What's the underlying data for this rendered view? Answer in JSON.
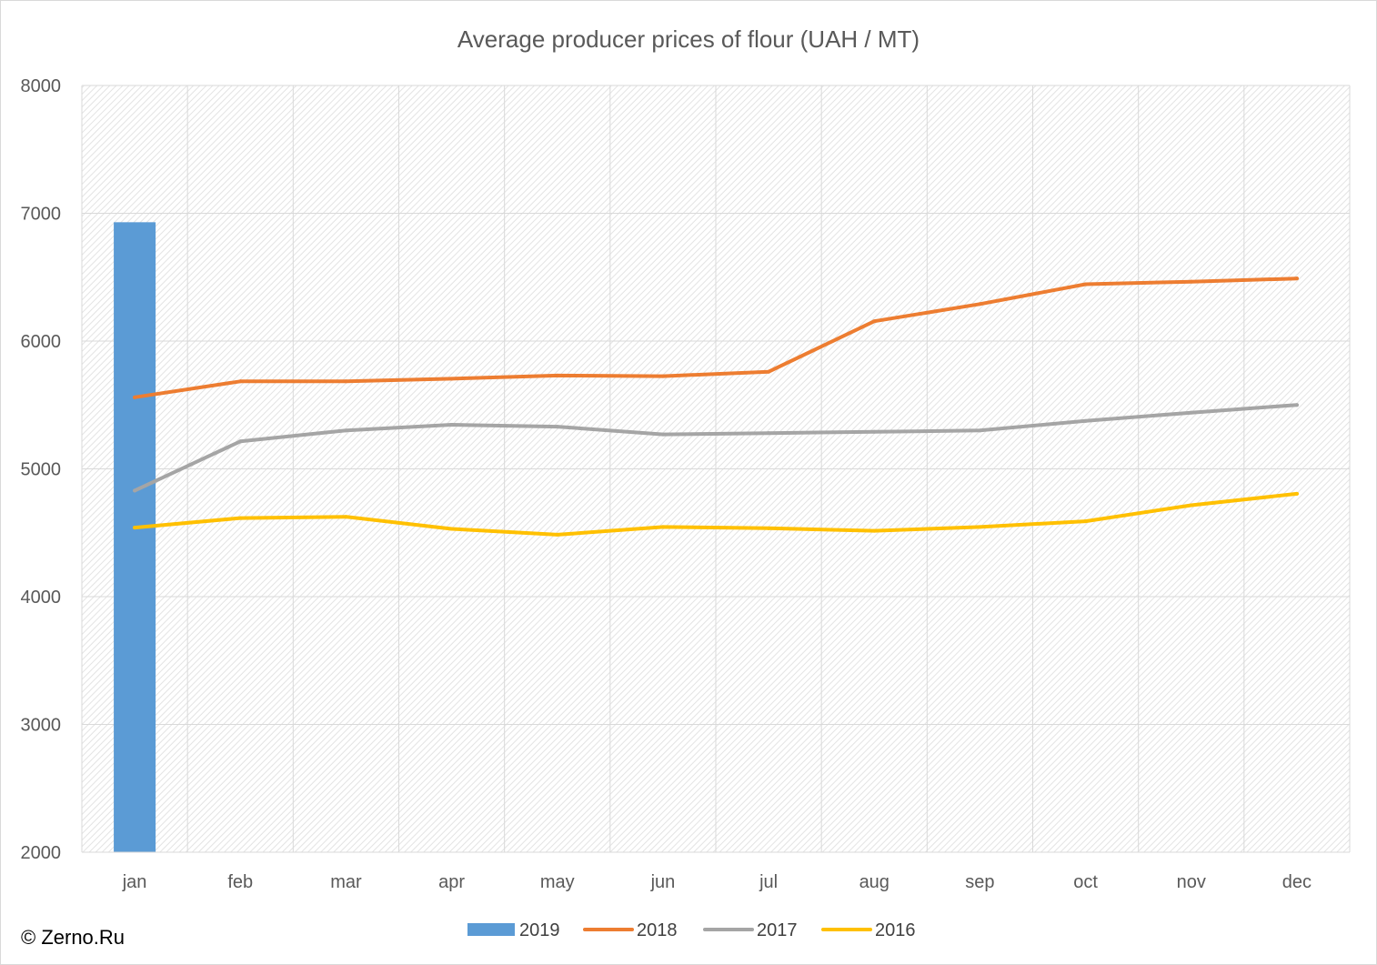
{
  "chart_data": {
    "type": "bar+line",
    "title": "Average producer prices of flour (UAH / MT)",
    "categories": [
      "jan",
      "feb",
      "mar",
      "apr",
      "may",
      "jun",
      "jul",
      "aug",
      "sep",
      "oct",
      "nov",
      "dec"
    ],
    "yticks": [
      2000,
      3000,
      4000,
      5000,
      6000,
      7000,
      8000
    ],
    "ylim": [
      2000,
      8000
    ],
    "grid": true,
    "legend_position": "bottom",
    "series": [
      {
        "name": "2019",
        "type": "bar",
        "color": "#5b9bd5",
        "values": [
          6930,
          null,
          null,
          null,
          null,
          null,
          null,
          null,
          null,
          null,
          null,
          null
        ]
      },
      {
        "name": "2018",
        "type": "line",
        "color": "#ed7d31",
        "values": [
          5560,
          5685,
          5685,
          5705,
          5730,
          5725,
          5760,
          6155,
          6290,
          6445,
          6465,
          6490
        ]
      },
      {
        "name": "2017",
        "type": "line",
        "color": "#a5a5a5",
        "values": [
          4830,
          5215,
          5300,
          5345,
          5330,
          5270,
          5280,
          5290,
          5300,
          5375,
          5440,
          5500
        ]
      },
      {
        "name": "2016",
        "type": "line",
        "color": "#ffc000",
        "values": [
          4540,
          4615,
          4625,
          4530,
          4485,
          4545,
          4535,
          4515,
          4545,
          4590,
          4715,
          4805
        ]
      }
    ]
  },
  "copyright": "© Zerno.Ru"
}
